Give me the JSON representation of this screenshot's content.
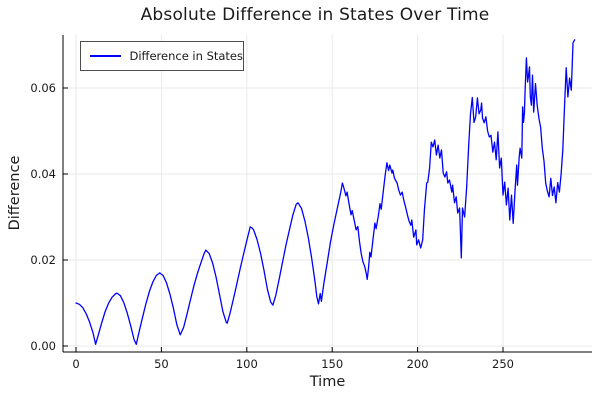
{
  "title": "Absolute Difference in States Over Time",
  "legend": {
    "label": "Difference in States"
  },
  "chart_data": {
    "type": "line",
    "title": "Absolute Difference in States Over Time",
    "xlabel": "Time",
    "ylabel": "Difference",
    "xlim": [
      -8,
      302
    ],
    "ylim": [
      -0.0015,
      0.0723
    ],
    "x_ticks": [
      0,
      50,
      100,
      150,
      200,
      250
    ],
    "x_tick_labels": [
      "0",
      "50",
      "100",
      "150",
      "200",
      "250"
    ],
    "y_ticks": [
      0.0,
      0.02,
      0.04,
      0.06
    ],
    "y_tick_labels": [
      "0.00",
      "0.02",
      "0.04",
      "0.06"
    ],
    "grid": true,
    "grid_color": "#e9e9e9",
    "axis_color": "#000000",
    "legend_position": "top-left",
    "series": [
      {
        "name": "Difference in States",
        "color": "#0000ff",
        "points": [
          [
            0,
            0.01
          ],
          [
            2,
            0.0097
          ],
          [
            4,
            0.0089
          ],
          [
            6,
            0.0075
          ],
          [
            8,
            0.0055
          ],
          [
            10,
            0.003
          ],
          [
            11.5,
            0.0004
          ],
          [
            13,
            0.0025
          ],
          [
            15,
            0.0053
          ],
          [
            17,
            0.0079
          ],
          [
            19,
            0.0099
          ],
          [
            21,
            0.0113
          ],
          [
            23,
            0.0121
          ],
          [
            24,
            0.0123
          ],
          [
            26,
            0.0117
          ],
          [
            28,
            0.0101
          ],
          [
            30,
            0.0077
          ],
          [
            32,
            0.0047
          ],
          [
            34,
            0.0015
          ],
          [
            35.3,
            0.0004
          ],
          [
            37,
            0.0034
          ],
          [
            39,
            0.0067
          ],
          [
            41,
            0.0099
          ],
          [
            43,
            0.0127
          ],
          [
            45,
            0.0149
          ],
          [
            47,
            0.0164
          ],
          [
            49,
            0.017
          ],
          [
            51,
            0.0164
          ],
          [
            53,
            0.0147
          ],
          [
            55,
            0.0121
          ],
          [
            57,
            0.0088
          ],
          [
            59,
            0.005
          ],
          [
            61,
            0.0026
          ],
          [
            63,
            0.0043
          ],
          [
            65,
            0.0074
          ],
          [
            67,
            0.0107
          ],
          [
            69,
            0.014
          ],
          [
            71,
            0.0168
          ],
          [
            73,
            0.0192
          ],
          [
            75,
            0.0215
          ],
          [
            76,
            0.0223
          ],
          [
            78,
            0.0215
          ],
          [
            80,
            0.0193
          ],
          [
            82,
            0.016
          ],
          [
            84,
            0.012
          ],
          [
            86,
            0.008
          ],
          [
            88,
            0.0055
          ],
          [
            88.5,
            0.0053
          ],
          [
            90,
            0.0073
          ],
          [
            92,
            0.0106
          ],
          [
            94,
            0.0142
          ],
          [
            96,
            0.0178
          ],
          [
            98,
            0.0212
          ],
          [
            100,
            0.0245
          ],
          [
            102,
            0.0277
          ],
          [
            103,
            0.0275
          ],
          [
            104,
            0.027
          ],
          [
            106,
            0.0248
          ],
          [
            108,
            0.0216
          ],
          [
            110,
            0.0177
          ],
          [
            112,
            0.0133
          ],
          [
            114,
            0.0102
          ],
          [
            115.3,
            0.0095
          ],
          [
            117,
            0.0118
          ],
          [
            119,
            0.0157
          ],
          [
            121,
            0.0197
          ],
          [
            123,
            0.0236
          ],
          [
            125,
            0.0271
          ],
          [
            127,
            0.0305
          ],
          [
            129,
            0.033
          ],
          [
            130,
            0.0333
          ],
          [
            132,
            0.032
          ],
          [
            134,
            0.0291
          ],
          [
            136,
            0.0252
          ],
          [
            138,
            0.0204
          ],
          [
            140,
            0.0148
          ],
          [
            141,
            0.0115
          ],
          [
            142,
            0.0098
          ],
          [
            143,
            0.0122
          ],
          [
            143.7,
            0.0104
          ],
          [
            145,
            0.0143
          ],
          [
            147,
            0.0192
          ],
          [
            149,
            0.0242
          ],
          [
            151,
            0.0283
          ],
          [
            153,
            0.032
          ],
          [
            155,
            0.0357
          ],
          [
            156,
            0.0379
          ],
          [
            157,
            0.0365
          ],
          [
            158,
            0.0349
          ],
          [
            158.7,
            0.0358
          ],
          [
            160,
            0.0327
          ],
          [
            161,
            0.0305
          ],
          [
            161.7,
            0.0315
          ],
          [
            163,
            0.029
          ],
          [
            164,
            0.027
          ],
          [
            165,
            0.0278
          ],
          [
            166,
            0.0243
          ],
          [
            167,
            0.0215
          ],
          [
            168,
            0.0196
          ],
          [
            169,
            0.0185
          ],
          [
            170,
            0.0167
          ],
          [
            170.5,
            0.0155
          ],
          [
            171.3,
            0.0183
          ],
          [
            172,
            0.0218
          ],
          [
            172.7,
            0.0207
          ],
          [
            174,
            0.0252
          ],
          [
            175,
            0.0286
          ],
          [
            175.7,
            0.0273
          ],
          [
            177,
            0.0302
          ],
          [
            178,
            0.0331
          ],
          [
            178.7,
            0.0318
          ],
          [
            180,
            0.0362
          ],
          [
            181,
            0.0396
          ],
          [
            182,
            0.0426
          ],
          [
            183,
            0.0408
          ],
          [
            183.7,
            0.0421
          ],
          [
            185,
            0.0402
          ],
          [
            185.5,
            0.0409
          ],
          [
            186.5,
            0.039
          ],
          [
            188,
            0.0379
          ],
          [
            189,
            0.0362
          ],
          [
            190,
            0.0351
          ],
          [
            191,
            0.0358
          ],
          [
            192,
            0.0338
          ],
          [
            193,
            0.0323
          ],
          [
            194,
            0.0305
          ],
          [
            195,
            0.029
          ],
          [
            196,
            0.0281
          ],
          [
            196.6,
            0.0293
          ],
          [
            197.7,
            0.0253
          ],
          [
            199,
            0.027
          ],
          [
            199.5,
            0.0235
          ],
          [
            200.6,
            0.0247
          ],
          [
            201.8,
            0.0228
          ],
          [
            203,
            0.0247
          ],
          [
            204,
            0.0316
          ],
          [
            205.3,
            0.0379
          ],
          [
            206,
            0.0381
          ],
          [
            207,
            0.0414
          ],
          [
            208,
            0.0474
          ],
          [
            209,
            0.0463
          ],
          [
            210,
            0.0479
          ],
          [
            211,
            0.0444
          ],
          [
            212,
            0.0467
          ],
          [
            213,
            0.0437
          ],
          [
            214,
            0.0456
          ],
          [
            215,
            0.0402
          ],
          [
            216,
            0.0393
          ],
          [
            217,
            0.0405
          ],
          [
            217.7,
            0.0379
          ],
          [
            218.7,
            0.0386
          ],
          [
            220,
            0.0358
          ],
          [
            220.5,
            0.0374
          ],
          [
            221.6,
            0.0333
          ],
          [
            222.6,
            0.0347
          ],
          [
            223.5,
            0.0309
          ],
          [
            224.6,
            0.0321
          ],
          [
            225.6,
            0.0205
          ],
          [
            226.3,
            0.0321
          ],
          [
            227.5,
            0.03
          ],
          [
            228.7,
            0.0367
          ],
          [
            229.9,
            0.0467
          ],
          [
            231,
            0.054
          ],
          [
            232,
            0.0578
          ],
          [
            233,
            0.052
          ],
          [
            234,
            0.0533
          ],
          [
            235,
            0.0577
          ],
          [
            236,
            0.054
          ],
          [
            237,
            0.0549
          ],
          [
            237.5,
            0.0565
          ],
          [
            238,
            0.053
          ],
          [
            239,
            0.0519
          ],
          [
            240,
            0.0533
          ],
          [
            241,
            0.05
          ],
          [
            242,
            0.0486
          ],
          [
            243,
            0.049
          ],
          [
            244,
            0.0451
          ],
          [
            245,
            0.0474
          ],
          [
            246,
            0.0433
          ],
          [
            247,
            0.0498
          ],
          [
            248,
            0.0414
          ],
          [
            249,
            0.0437
          ],
          [
            250,
            0.0351
          ],
          [
            251,
            0.0381
          ],
          [
            252,
            0.0328
          ],
          [
            253,
            0.0367
          ],
          [
            254,
            0.0293
          ],
          [
            255,
            0.0351
          ],
          [
            256,
            0.0285
          ],
          [
            257,
            0.036
          ],
          [
            258,
            0.0421
          ],
          [
            258.5,
            0.0374
          ],
          [
            259.5,
            0.044
          ],
          [
            260,
            0.046
          ],
          [
            261,
            0.0437
          ],
          [
            261.5,
            0.0556
          ],
          [
            262,
            0.052
          ],
          [
            262.5,
            0.0542
          ],
          [
            263,
            0.06
          ],
          [
            263.7,
            0.067
          ],
          [
            264.4,
            0.0614
          ],
          [
            265,
            0.063
          ],
          [
            265.5,
            0.0649
          ],
          [
            266,
            0.058
          ],
          [
            266.6,
            0.056
          ],
          [
            267.3,
            0.063
          ],
          [
            268,
            0.0544
          ],
          [
            269,
            0.061
          ],
          [
            270,
            0.056
          ],
          [
            271,
            0.053
          ],
          [
            272,
            0.0509
          ],
          [
            273,
            0.046
          ],
          [
            274,
            0.043
          ],
          [
            275,
            0.0379
          ],
          [
            276,
            0.036
          ],
          [
            277,
            0.0347
          ],
          [
            278,
            0.039
          ],
          [
            279,
            0.035
          ],
          [
            280,
            0.037
          ],
          [
            281,
            0.0333
          ],
          [
            282,
            0.038
          ],
          [
            283,
            0.0358
          ],
          [
            284,
            0.04
          ],
          [
            285,
            0.0456
          ],
          [
            286,
            0.0556
          ],
          [
            287,
            0.0647
          ],
          [
            288,
            0.0579
          ],
          [
            289,
            0.0623
          ],
          [
            290,
            0.0595
          ],
          [
            291,
            0.0705
          ],
          [
            292,
            0.0712
          ]
        ]
      }
    ]
  }
}
